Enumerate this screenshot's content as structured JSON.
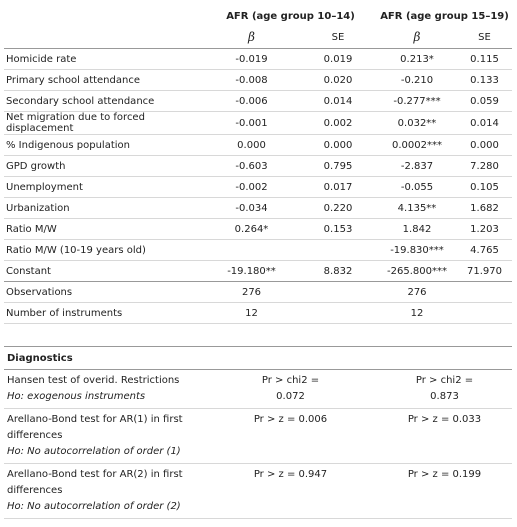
{
  "table": {
    "groups": [
      "AFR (age group 10–14)",
      "AFR (age group 15–19)"
    ],
    "subheaders": [
      "β",
      "SE",
      "β",
      "SE"
    ],
    "rows": [
      [
        "Homicide rate",
        "-0.019",
        "0.019",
        "0.213*",
        "0.115"
      ],
      [
        "Primary school attendance",
        "-0.008",
        "0.020",
        "-0.210",
        "0.133"
      ],
      [
        "Secondary school attendance",
        "-0.006",
        "0.014",
        "-0.277***",
        "0.059"
      ],
      [
        "Net migration due to forced displacement",
        "-0.001",
        "0.002",
        "0.032**",
        "0.014"
      ],
      [
        "% Indigenous population",
        "0.000",
        "0.000",
        "0.0002***",
        "0.000"
      ],
      [
        "GPD growth",
        "-0.603",
        "0.795",
        "-2.837",
        "7.280"
      ],
      [
        "Unemployment",
        "-0.002",
        "0.017",
        "-0.055",
        "0.105"
      ],
      [
        "Urbanization",
        "-0.034",
        "0.220",
        "4.135**",
        "1.682"
      ],
      [
        "Ratio M/W",
        "0.264*",
        "0.153",
        "1.842",
        "1.203"
      ],
      [
        "Ratio M/W (10-19 years old)",
        null,
        null,
        "-19.830***",
        "4.765"
      ],
      [
        "Constant",
        "-19.180**",
        "8.832",
        "-265.800***",
        "71.970"
      ]
    ],
    "summary": [
      [
        "Observations",
        "276",
        "276"
      ],
      [
        "Number of instruments",
        "12",
        "12"
      ]
    ]
  },
  "diagnostics": {
    "title": "Diagnostics",
    "tests": [
      {
        "test": "Hansen test of overid. Restrictions",
        "hypothesis": "Ho: exogenous instruments",
        "values": [
          "Pr > chi2 = 0.072",
          "Pr > chi2 = 0.873"
        ]
      },
      {
        "test": "Arellano-Bond test for AR(1) in first differences",
        "hypothesis": "Ho: No autocorrelation of order (1)",
        "values": [
          "Pr > z = 0.006",
          "Pr > z = 0.033"
        ]
      },
      {
        "test": "Arellano-Bond test for AR(2) in first differences",
        "hypothesis": "Ho: No autocorrelation of order (2)",
        "values": [
          "Pr > z = 0.947",
          "Pr > z = 0.199"
        ]
      }
    ]
  }
}
